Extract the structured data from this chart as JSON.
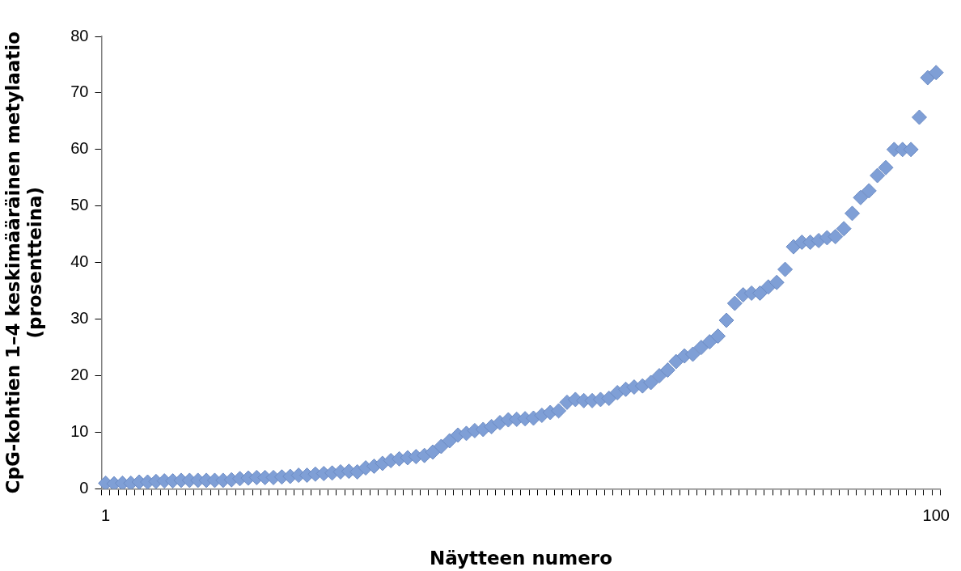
{
  "chart_data": {
    "type": "scatter",
    "xlabel": "Näytteen numero",
    "ylabel": "CpG-kohtien 1–4 keskimääräinen metylaatio\n(prosentteina)",
    "categories": [
      "1",
      null,
      null,
      null,
      null,
      null,
      null,
      null,
      null,
      null,
      null,
      null,
      null,
      null,
      null,
      null,
      null,
      null,
      null,
      null,
      null,
      null,
      null,
      null,
      null,
      null,
      null,
      null,
      null,
      null,
      null,
      null,
      null,
      null,
      null,
      null,
      null,
      null,
      null,
      null,
      null,
      null,
      null,
      null,
      null,
      null,
      null,
      null,
      null,
      null,
      null,
      null,
      null,
      null,
      null,
      null,
      null,
      null,
      null,
      null,
      null,
      null,
      null,
      null,
      null,
      null,
      null,
      null,
      null,
      null,
      null,
      null,
      null,
      null,
      null,
      null,
      null,
      null,
      null,
      null,
      null,
      null,
      null,
      null,
      null,
      null,
      null,
      null,
      null,
      null,
      null,
      null,
      null,
      null,
      null,
      null,
      null,
      null,
      null,
      "100"
    ],
    "values": [
      1.0,
      0.9,
      1.0,
      1.0,
      1.2,
      1.2,
      1.3,
      1.4,
      1.4,
      1.5,
      1.5,
      1.5,
      1.5,
      1.5,
      1.5,
      1.6,
      1.8,
      1.9,
      2.0,
      2.0,
      2.0,
      2.1,
      2.2,
      2.4,
      2.4,
      2.6,
      2.7,
      2.8,
      3.0,
      3.1,
      3.0,
      3.7,
      4.0,
      4.5,
      5.0,
      5.3,
      5.5,
      5.7,
      5.9,
      6.5,
      7.5,
      8.5,
      9.5,
      9.8,
      10.3,
      10.5,
      11.0,
      11.7,
      12.2,
      12.3,
      12.4,
      12.5,
      13.0,
      13.5,
      13.8,
      15.3,
      15.8,
      15.6,
      15.6,
      15.8,
      16.0,
      17.0,
      17.6,
      18.0,
      18.2,
      18.8,
      20.0,
      21.0,
      22.5,
      23.5,
      23.8,
      25.0,
      26.0,
      27.0,
      29.8,
      32.8,
      34.3,
      34.6,
      34.6,
      35.7,
      36.5,
      38.8,
      42.8,
      43.6,
      43.6,
      43.9,
      44.4,
      44.6,
      46.0,
      48.7,
      51.5,
      52.7,
      55.4,
      56.8,
      60.0,
      60.0,
      60.0,
      65.7,
      72.7,
      73.6
    ],
    "color": "#7f9fd6",
    "marker": "diamond",
    "grid": false,
    "legend": false,
    "ylim": [
      0,
      80
    ],
    "yticks": [
      0,
      10,
      20,
      30,
      40,
      50,
      60,
      70,
      80
    ]
  }
}
